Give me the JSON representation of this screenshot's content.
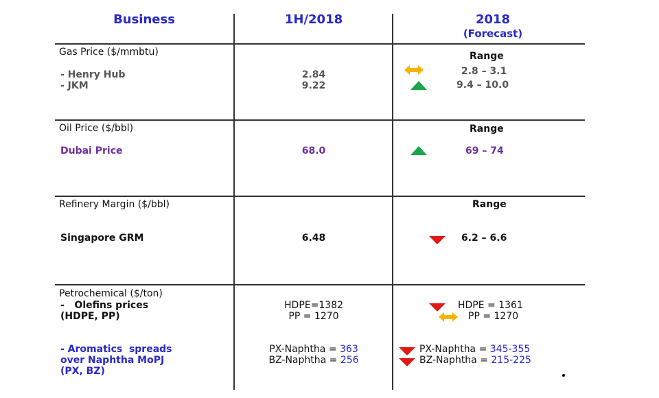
{
  "header": {
    "business": "Business",
    "actual": "1H/2018",
    "forecast": "2018",
    "forecast_note": "(Forecast)"
  },
  "sections": [
    {
      "title": "Gas Price ($/mmbtu)",
      "range_label": "Range",
      "rows": [
        {
          "name": "- Henry Hub",
          "actual": "2.84",
          "forecast": "2.8 – 3.1",
          "trend": "flat"
        },
        {
          "name": "- JKM",
          "actual": "9.22",
          "forecast": "9.4 – 10.0",
          "trend": "up"
        }
      ]
    },
    {
      "title": "Oil Price ($/bbl)",
      "range_label": "Range",
      "rows": [
        {
          "name": "Dubai Price",
          "actual": "68.0",
          "forecast": "69 – 74",
          "trend": "up"
        }
      ]
    },
    {
      "title": "Refinery Margin ($/bbl)",
      "range_label": "Range",
      "rows": [
        {
          "name": "Singapore GRM",
          "actual": "6.48",
          "forecast": "6.2 – 6.6",
          "trend": "down"
        }
      ]
    },
    {
      "title": "Petrochemical ($/ton)",
      "rows": [
        {
          "name": [
            "-   Olefins prices",
            "(HDPE, PP)"
          ],
          "actual": [
            "HDPE=1382",
            "PP = 1270"
          ],
          "forecast": [
            {
              "text": "HDPE = 1361",
              "trend": "down"
            },
            {
              "text": "PP = 1270",
              "trend": "flat"
            }
          ]
        },
        {
          "name": [
            "- Aromatics  spreads",
            "over Naphtha MoPJ",
            "(PX, BZ)"
          ],
          "actual": [
            {
              "label": "PX-Naphtha = ",
              "value": "363"
            },
            {
              "label": "BZ-Naphtha = ",
              "value": "256"
            }
          ],
          "forecast": [
            {
              "label": "PX-Naphtha = ",
              "value": "345-355",
              "trend": "down"
            },
            {
              "label": "BZ-Naphtha = ",
              "value": "215-225",
              "trend": "down"
            }
          ]
        }
      ]
    }
  ]
}
